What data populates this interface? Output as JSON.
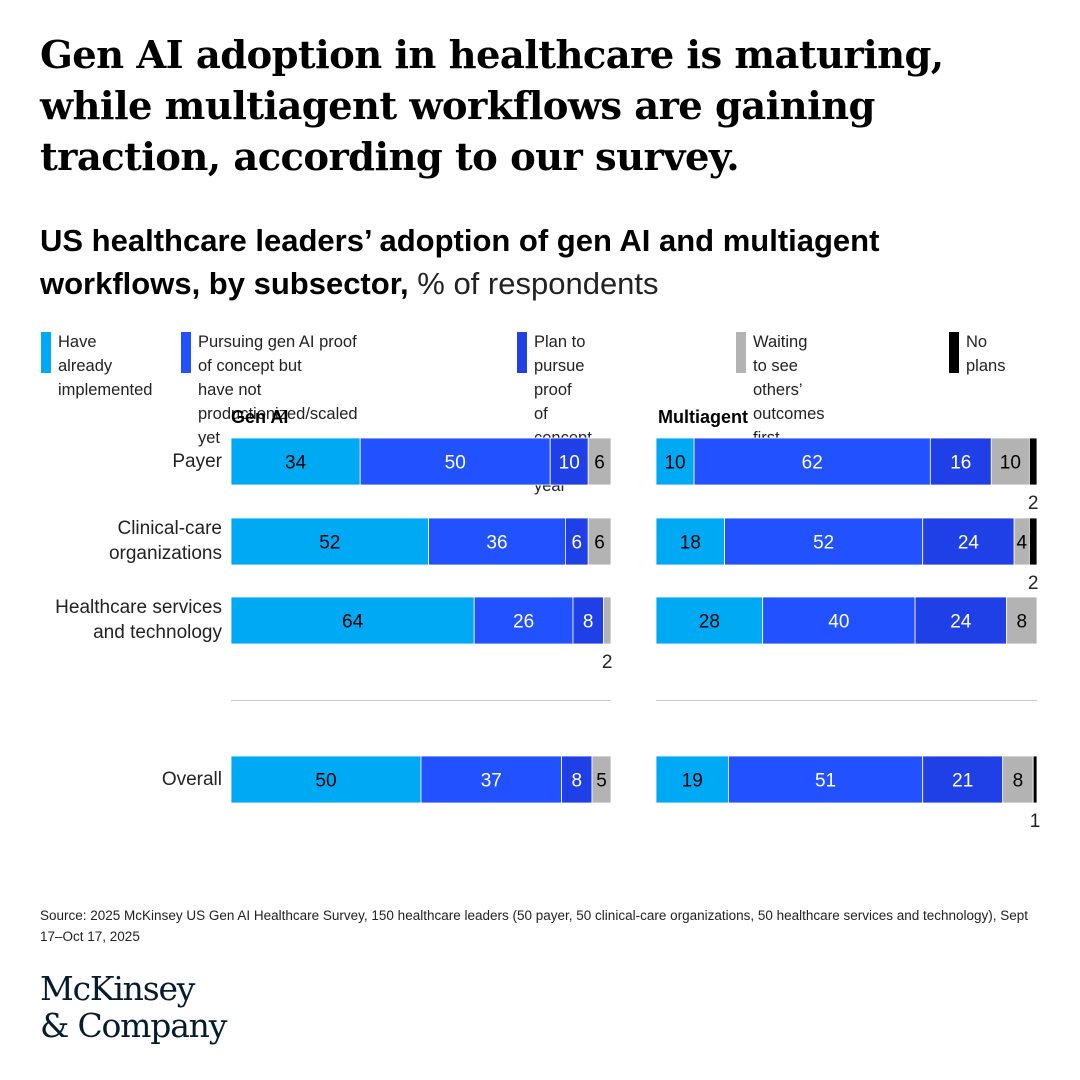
{
  "headline": "Gen AI adoption in healthcare is maturing, while multiagent workflows are gaining traction, according to our survey.",
  "subtitle": {
    "bold": "US healthcare leaders’ adoption of gen AI and multiagent workflows, by subsector,",
    "light": " % of respondents"
  },
  "legend": [
    {
      "label": "Have already\nimplemented",
      "color": "#00a9f4"
    },
    {
      "label": "Pursuing gen AI proof of concept but\nhave not productionized/scaled yet",
      "color": "#2251ff"
    },
    {
      "label": "Plan to pursue proof\nof concept in next year",
      "color": "#1f40e6"
    },
    {
      "label": "Waiting to see\nothers’ outcomes first",
      "color": "#b3b3b3"
    },
    {
      "label": "No plans",
      "color": "#000000"
    }
  ],
  "rows": [
    {
      "label": "Payer"
    },
    {
      "label": "Clinical-care\norganizations"
    },
    {
      "label": "Healthcare services\nand technology"
    },
    {
      "label": "Overall"
    }
  ],
  "chart_data": [
    {
      "type": "bar",
      "orientation": "horizontal",
      "stacked": true,
      "title": "Gen AI",
      "categories": [
        "Payer",
        "Clinical-care organizations",
        "Healthcare services and technology",
        "Overall"
      ],
      "xlim": [
        0,
        100
      ],
      "series": [
        {
          "name": "Have already implemented",
          "color": "#00a9f4",
          "values": [
            34,
            52,
            64,
            50
          ]
        },
        {
          "name": "Pursuing gen AI proof of concept but have not productionized/scaled yet",
          "color": "#2251ff",
          "values": [
            50,
            36,
            26,
            37
          ]
        },
        {
          "name": "Plan to pursue proof of concept in next year",
          "color": "#1f40e6",
          "values": [
            10,
            6,
            8,
            8
          ]
        },
        {
          "name": "Waiting to see others’ outcomes first",
          "color": "#b3b3b3",
          "values": [
            6,
            6,
            2,
            5
          ]
        },
        {
          "name": "No plans",
          "color": "#000000",
          "values": [
            0,
            0,
            0,
            0
          ]
        }
      ]
    },
    {
      "type": "bar",
      "orientation": "horizontal",
      "stacked": true,
      "title": "Multiagent",
      "categories": [
        "Payer",
        "Clinical-care organizations",
        "Healthcare services and technology",
        "Overall"
      ],
      "xlim": [
        0,
        100
      ],
      "series": [
        {
          "name": "Have already implemented",
          "color": "#00a9f4",
          "values": [
            10,
            18,
            28,
            19
          ]
        },
        {
          "name": "Pursuing gen AI proof of concept but have not productionized/scaled yet",
          "color": "#2251ff",
          "values": [
            62,
            52,
            40,
            51
          ]
        },
        {
          "name": "Plan to pursue proof of concept in next year",
          "color": "#1f40e6",
          "values": [
            16,
            24,
            24,
            21
          ]
        },
        {
          "name": "Waiting to see others’ outcomes first",
          "color": "#b3b3b3",
          "values": [
            10,
            4,
            8,
            8
          ]
        },
        {
          "name": "No plans",
          "color": "#000000",
          "values": [
            2,
            2,
            0,
            1
          ]
        }
      ]
    }
  ],
  "source": "Source: 2025 McKinsey US Gen AI Healthcare Survey, 150 healthcare leaders (50 payer, 50 clinical-care organizations, 50 healthcare services and technology), Sept 17–Oct 17, 2025",
  "logo": {
    "line1": "McKinsey",
    "line2": "& Company"
  }
}
